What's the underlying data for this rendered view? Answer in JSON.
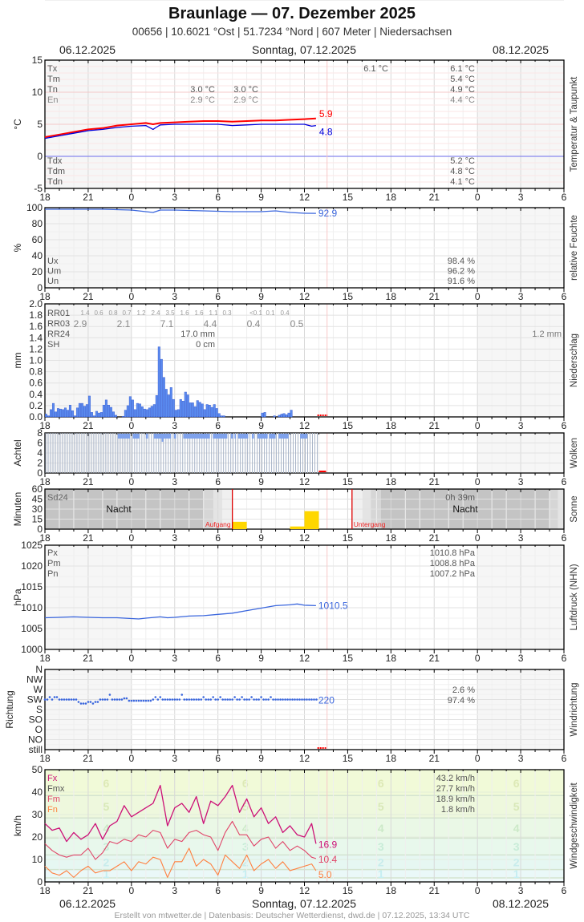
{
  "header": {
    "title": "Braunlage  —  07. Dezember 2025",
    "subtitle": "00656  |  10.6021 °Ost  |  51.7234 °Nord  |  607 Meter  |  Niedersachsen"
  },
  "datebar": {
    "left": "06.12.2025",
    "center": "Sonntag, 07.12.2025",
    "right": "08.12.2025"
  },
  "footer": "Erstellt von mtwetter.de | Datenbasis: Deutscher Wetterdienst, dwd.de | 07.12.2025, 13:34 UTC",
  "x_axis": {
    "start_hour": 18,
    "hours_span": 36,
    "tick_labels": [
      "18",
      "21",
      "0",
      "3",
      "6",
      "9",
      "12",
      "15",
      "18",
      "21",
      "0",
      "3",
      "6"
    ],
    "now_hour_offset": 19.57
  },
  "colors": {
    "temp": "#ff0000",
    "dewpoint": "#0000dd",
    "series_blue": "#3a66dd",
    "rain_bar": "#5b8cf0",
    "sun_bar": "#ffd700",
    "now_line": "#f8c8c8",
    "sun_event": "#dd0000",
    "fx": "#cc1177",
    "fm": "#e04468",
    "fn": "#ff8040"
  },
  "chart_data": [
    {
      "id": "temperature",
      "type": "line",
      "title": "Temperatur & Taupunkt",
      "ylabel": "°C",
      "ylim": [
        -5,
        15
      ],
      "yticks": [
        "15",
        "10",
        "5",
        "0",
        "-5"
      ],
      "stats_left": [
        "Tx",
        "Tm",
        "Tn",
        "En"
      ],
      "stats_left_bottom": [
        "Tdx",
        "Tdm",
        "Tdn"
      ],
      "stats_day1": {
        "Tn": "3.0 °C",
        "En": "2.9 °C"
      },
      "stats_day1b": {
        "Tn": "3.0 °C",
        "En": "2.9 °C"
      },
      "stats_day2_tx": "6.1 °C",
      "stats_day3": [
        "6.1 °C",
        "5.4 °C",
        "4.9 °C",
        "4.4 °C"
      ],
      "stats_day3_bottom": [
        "5.2 °C",
        "4.8 °C",
        "4.1 °C"
      ],
      "series": [
        {
          "name": "Temperatur",
          "last_label": "5.9",
          "x": [
            0,
            1,
            2,
            3,
            4,
            5,
            6,
            7,
            7.5,
            8,
            9,
            10,
            11,
            12,
            13,
            14,
            15,
            16,
            17,
            18,
            18.8
          ],
          "values": [
            3.0,
            3.4,
            3.8,
            4.2,
            4.4,
            4.8,
            5.0,
            5.2,
            5.0,
            5.2,
            5.3,
            5.4,
            5.5,
            5.5,
            5.4,
            5.5,
            5.6,
            5.6,
            5.7,
            5.8,
            5.9
          ]
        },
        {
          "name": "Taupunkt",
          "last_label": "4.8",
          "x": [
            0,
            1,
            2,
            3,
            4,
            5,
            6,
            7,
            7.5,
            7.7,
            8,
            9,
            10,
            11,
            12,
            13,
            14,
            15,
            16,
            17,
            18,
            18.5,
            18.8
          ],
          "values": [
            2.8,
            3.2,
            3.6,
            4.0,
            4.2,
            4.5,
            4.7,
            4.8,
            4.2,
            4.5,
            4.9,
            5.0,
            5.0,
            5.0,
            5.0,
            4.8,
            4.9,
            5.0,
            5.0,
            5.0,
            5.0,
            4.7,
            4.8
          ]
        }
      ]
    },
    {
      "id": "humidity",
      "type": "line",
      "title": "relative Feuchte",
      "ylabel": "%",
      "ylim": [
        0,
        100
      ],
      "yticks": [
        "100",
        "80",
        "60",
        "40",
        "20",
        "0"
      ],
      "stats_left": [
        "Ux",
        "Um",
        "Un"
      ],
      "stats_day3": [
        "98.4 %",
        "96.2 %",
        "91.6 %"
      ],
      "series": [
        {
          "name": "Feuchte",
          "last_label": "92.9",
          "x": [
            0,
            2,
            4,
            6,
            7.5,
            8,
            9,
            11,
            13,
            15,
            16,
            17,
            18,
            18.8
          ],
          "values": [
            98,
            98,
            98,
            97,
            94,
            97,
            97,
            96,
            95,
            95,
            96,
            94,
            93,
            92.9
          ]
        }
      ]
    },
    {
      "id": "precipitation",
      "type": "bar",
      "title": "Niederschlag",
      "ylabel": "mm",
      "ylim": [
        0,
        2.0
      ],
      "yticks": [
        "2.0",
        "1.8",
        "1.6",
        "1.4",
        "1.2",
        "1.0",
        "0.8",
        "0.6",
        "0.4",
        "0.2",
        "0.0"
      ],
      "rr01_label": "RR01",
      "rr01": [
        "1.4",
        "0.6",
        "0.8",
        "0.7",
        "1.2",
        "2.4",
        "3.5",
        "1.6",
        "1.6",
        "1.1",
        "0.3",
        "",
        "<0.1",
        "0.1",
        "0.4"
      ],
      "rr03_label": "RR03",
      "rr03": [
        "2.9",
        "2.1",
        "7.1",
        "4.4",
        "0.4",
        "0.5"
      ],
      "rr24_label": "RR24",
      "rr24_value": "17.0 mm",
      "rr24_next": "1.2 mm",
      "sh_label": "SH",
      "sh_value": "0 cm",
      "bar_width_hours": 0.1667,
      "values_10min": [
        0.05,
        0.02,
        0.13,
        0.24,
        0.09,
        0.15,
        0.14,
        0.13,
        0.16,
        0.12,
        0.21,
        0.11,
        0.02,
        0.16,
        0.24,
        0.24,
        0.19,
        0.22,
        0.37,
        0.08,
        0.02,
        0.1,
        0.07,
        0.08,
        0.21,
        0.3,
        0.21,
        0.17,
        0.09,
        0.03,
        0.0,
        0.0,
        0.01,
        0.12,
        0.2,
        0.36,
        0.3,
        0.13,
        0.24,
        0.23,
        0.18,
        0.14,
        0.13,
        0.16,
        0.19,
        0.22,
        0.38,
        1.24,
        1.02,
        0.7,
        0.49,
        0.39,
        0.52,
        0.31,
        0.12,
        0.13,
        0.31,
        0.28,
        0.44,
        0.39,
        0.25,
        0.25,
        0.18,
        0.29,
        0.26,
        0.23,
        0.13,
        0.22,
        0.21,
        0.17,
        0.22,
        0.15,
        0.06,
        0.02,
        0.02,
        0,
        0,
        0,
        0,
        0,
        0,
        0,
        0,
        0,
        0,
        0,
        0,
        0,
        0,
        0,
        0.07,
        0.08,
        0,
        0,
        0,
        0.02,
        0,
        0.03,
        0.05,
        0.06,
        0.04,
        0.07,
        0.12,
        0,
        0,
        0,
        0,
        0,
        0,
        0,
        0,
        0
      ]
    },
    {
      "id": "clouds",
      "type": "bar",
      "title": "Wolken",
      "ylabel": "Achtel",
      "ylim": [
        0,
        8
      ],
      "yticks": [
        "8",
        "6",
        "4",
        "2",
        "0"
      ],
      "end_hour_offset": 19.0
    },
    {
      "id": "sunshine",
      "type": "bar",
      "title": "Sonne",
      "ylabel": "Minuten",
      "ylim": [
        0,
        60
      ],
      "yticks": [
        "60",
        "45",
        "30",
        "15",
        "0"
      ],
      "sd24_label": "Sd24",
      "sd24_value": "0h 39m",
      "night_label": "Nacht",
      "sunrise_label": "Aufgang",
      "sunset_label": "Untergang",
      "sunrise_offset": 13.0,
      "sunset_offset": 21.3,
      "bars": [
        {
          "start": 13.0,
          "end": 14.0,
          "value": 11
        },
        {
          "start": 17.0,
          "end": 18.0,
          "value": 4
        },
        {
          "start": 18.0,
          "end": 19.0,
          "value": 27
        }
      ]
    },
    {
      "id": "pressure",
      "type": "line",
      "title": "Luftdruck (NHN)",
      "ylabel": "hPa",
      "ylim": [
        1000,
        1025
      ],
      "yticks": [
        "1025",
        "1020",
        "1015",
        "1010",
        "1005",
        "1000"
      ],
      "stats_left": [
        "Px",
        "Pm",
        "Pn"
      ],
      "stats_day3": [
        "1010.8 hPa",
        "1008.8 hPa",
        "1007.2 hPa"
      ],
      "series": [
        {
          "name": "Luftdruck",
          "last_label": "1010.5",
          "x": [
            0,
            1,
            2,
            3,
            4,
            5,
            6,
            6.5,
            7,
            8,
            8.5,
            9,
            10,
            11,
            12,
            13,
            14,
            15,
            16,
            17,
            17.5,
            18,
            18.8
          ],
          "values": [
            1007.6,
            1007.7,
            1007.8,
            1007.7,
            1007.6,
            1007.6,
            1007.4,
            1007.3,
            1007.5,
            1007.8,
            1007.6,
            1007.7,
            1008.0,
            1008.1,
            1008.4,
            1008.7,
            1009.3,
            1009.9,
            1010.5,
            1010.7,
            1010.9,
            1010.6,
            1010.5
          ]
        }
      ]
    },
    {
      "id": "wind_direction",
      "type": "scatter",
      "title": "Windrichtung",
      "ylabel": "Richtung",
      "ycategories": [
        "N",
        "NW",
        "W",
        "SW",
        "S",
        "SO",
        "O",
        "NO",
        "still"
      ],
      "stats_day3": [
        "2.6 %",
        "97.4 %"
      ],
      "last_label": "220"
    },
    {
      "id": "wind_speed",
      "type": "line",
      "title": "Windgeschwindigkeit",
      "ylabel": "km/h",
      "ylim": [
        0,
        50
      ],
      "yticks": [
        "50",
        "40",
        "30",
        "20",
        "10",
        "0"
      ],
      "stats_left": [
        "Fx",
        "Fmx",
        "Fm",
        "Fn"
      ],
      "stats_day3": [
        "43.2 km/h",
        "27.7 km/h",
        "18.9 km/h",
        "1.8 km/h"
      ],
      "beaufort_bands": [
        1,
        2,
        3,
        4,
        5,
        6
      ],
      "series": [
        {
          "name": "Fx",
          "last_label": "16.9",
          "x": [
            0,
            0.5,
            1,
            1.5,
            2,
            2.5,
            3,
            3.5,
            4,
            4.5,
            5,
            5.5,
            6,
            6.5,
            7,
            7.5,
            8,
            8.5,
            9,
            9.5,
            10,
            10.5,
            11,
            11.5,
            12,
            12.5,
            13,
            13.5,
            14,
            14.5,
            15,
            15.5,
            16,
            16.5,
            17,
            17.5,
            18,
            18.5,
            18.8
          ],
          "values": [
            26,
            23,
            24,
            18,
            22,
            19,
            21,
            26,
            19,
            25,
            27,
            34,
            29,
            31,
            33,
            35,
            43,
            25,
            33,
            35,
            31,
            38,
            26,
            36,
            34,
            38,
            43,
            31,
            37,
            29,
            33,
            26,
            29,
            22,
            25,
            21,
            20,
            26,
            17
          ]
        },
        {
          "name": "Fm",
          "last_label": "10.4",
          "x": [
            0,
            0.5,
            1,
            1.5,
            2,
            2.5,
            3,
            3.5,
            4,
            4.5,
            5,
            5.5,
            6,
            6.5,
            7,
            7.5,
            8,
            8.5,
            9,
            9.5,
            10,
            10.5,
            11,
            11.5,
            12,
            12.5,
            13,
            13.5,
            14,
            14.5,
            15,
            15.5,
            16,
            16.5,
            17,
            17.5,
            18,
            18.5,
            18.8
          ],
          "values": [
            17,
            14,
            12,
            11,
            12,
            12,
            15,
            10,
            13,
            18,
            17,
            19,
            18,
            21,
            20,
            23,
            22,
            15,
            19,
            18,
            22,
            23,
            21,
            20,
            14,
            22,
            27,
            21,
            21,
            16,
            19,
            20,
            15,
            18,
            14,
            16,
            14,
            11,
            10.4
          ]
        },
        {
          "name": "Fn",
          "last_label": "5.0",
          "x": [
            0,
            0.5,
            1,
            1.5,
            2,
            2.5,
            3,
            3.5,
            4,
            4.5,
            5,
            5.5,
            6,
            6.5,
            7,
            7.5,
            8,
            8.5,
            9,
            9.5,
            10,
            10.5,
            11,
            11.5,
            12,
            12.5,
            13,
            13.5,
            14,
            14.5,
            15,
            15.5,
            16,
            16.5,
            17,
            17.5,
            18,
            18.5,
            18.8
          ],
          "values": [
            7,
            4,
            3,
            5,
            2,
            5,
            7,
            4,
            5,
            5,
            7,
            9,
            5,
            9,
            8,
            11,
            10,
            2,
            9,
            9,
            15,
            7,
            10,
            8,
            3,
            12,
            9,
            6,
            12,
            5,
            8,
            10,
            6,
            9,
            5,
            6,
            7,
            8,
            5
          ]
        }
      ]
    }
  ]
}
